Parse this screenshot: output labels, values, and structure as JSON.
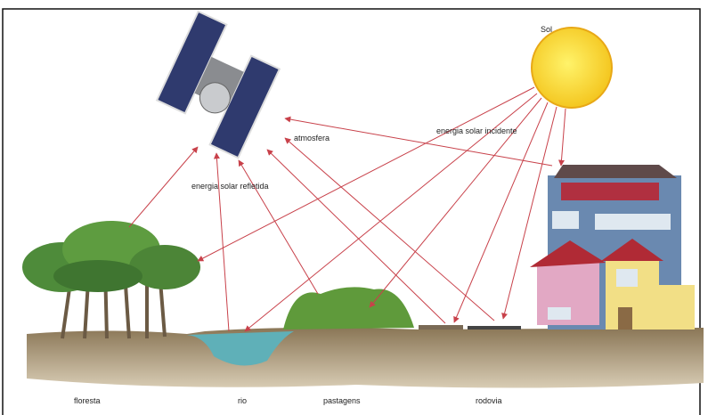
{
  "labels": {
    "sun": "Sol",
    "incident": "energia solar incidente",
    "atmosphere": "atmosfera",
    "reflected": "energia solar refletida",
    "forest": "floresta",
    "river": "rio",
    "pasture": "pastagens",
    "road": "rodovia"
  }
}
